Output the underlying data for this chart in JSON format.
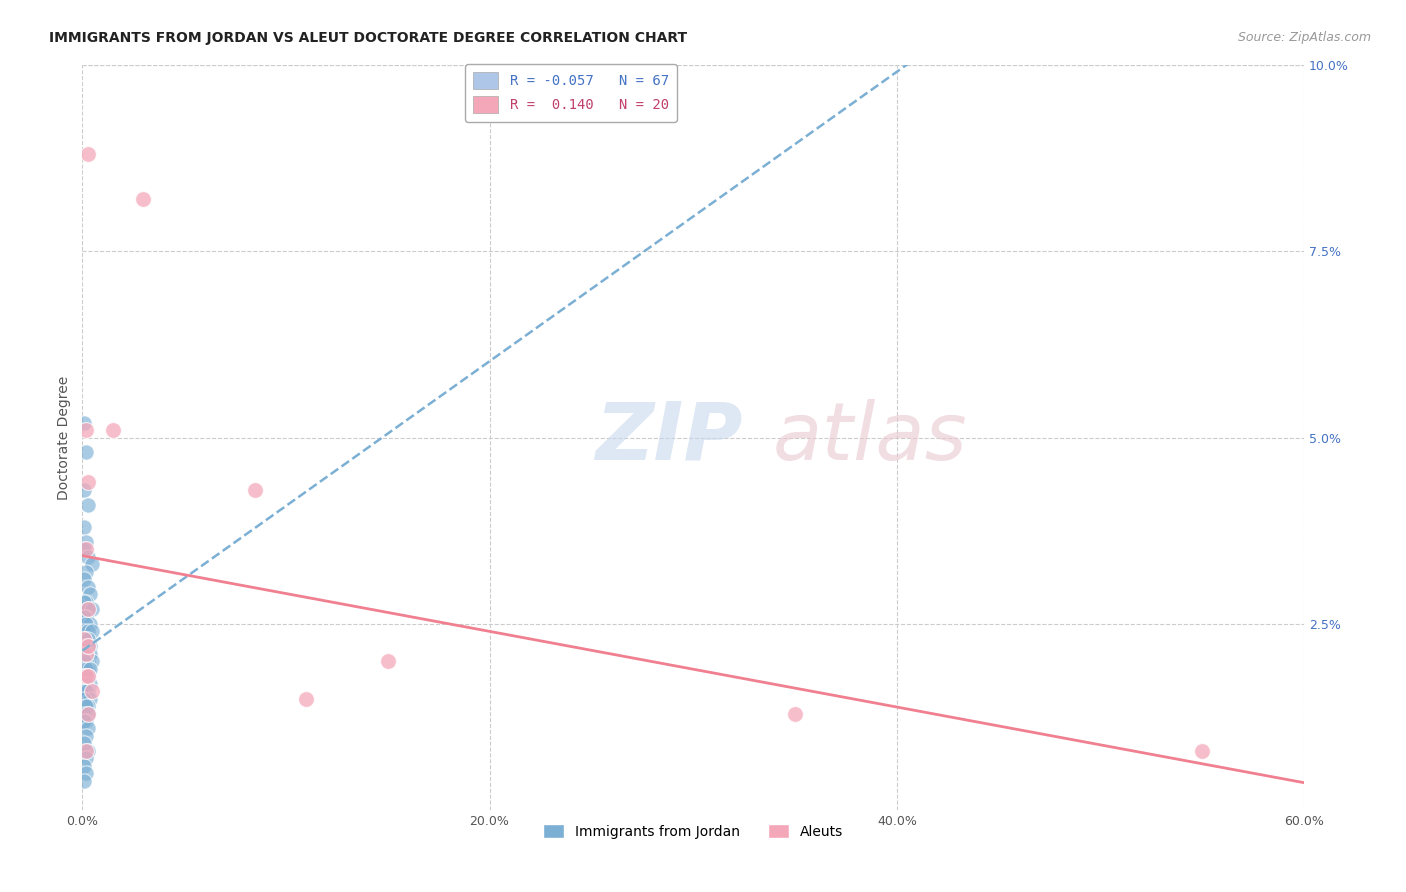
{
  "title": "IMMIGRANTS FROM JORDAN VS ALEUT DOCTORATE DEGREE CORRELATION CHART",
  "source": "Source: ZipAtlas.com",
  "ylabel": "Doctorate Degree",
  "xlabel": "",
  "xlim": [
    0.0,
    0.6
  ],
  "ylim": [
    0.0,
    0.1
  ],
  "xtick_labels": [
    "0.0%",
    "20.0%",
    "40.0%",
    "60.0%"
  ],
  "xtick_values": [
    0.0,
    0.2,
    0.4,
    0.6
  ],
  "ytick_labels": [
    "2.5%",
    "5.0%",
    "7.5%",
    "10.0%"
  ],
  "ytick_values": [
    0.025,
    0.05,
    0.075,
    0.1
  ],
  "jordan_color": "#7bafd4",
  "aleut_color": "#f08090",
  "jordan_scatter_color": "#7bafd4",
  "aleut_scatter_color": "#f4a7b9",
  "jordan_R": -0.057,
  "jordan_N": 67,
  "aleut_R": 0.14,
  "aleut_N": 20,
  "jordan_points": [
    [
      0.001,
      0.052
    ],
    [
      0.002,
      0.048
    ],
    [
      0.001,
      0.043
    ],
    [
      0.003,
      0.041
    ],
    [
      0.001,
      0.038
    ],
    [
      0.002,
      0.036
    ],
    [
      0.001,
      0.035
    ],
    [
      0.003,
      0.034
    ],
    [
      0.005,
      0.033
    ],
    [
      0.002,
      0.032
    ],
    [
      0.001,
      0.031
    ],
    [
      0.003,
      0.03
    ],
    [
      0.004,
      0.029
    ],
    [
      0.002,
      0.028
    ],
    [
      0.001,
      0.028
    ],
    [
      0.003,
      0.027
    ],
    [
      0.005,
      0.027
    ],
    [
      0.002,
      0.026
    ],
    [
      0.001,
      0.026
    ],
    [
      0.004,
      0.025
    ],
    [
      0.002,
      0.025
    ],
    [
      0.001,
      0.024
    ],
    [
      0.003,
      0.024
    ],
    [
      0.005,
      0.024
    ],
    [
      0.002,
      0.023
    ],
    [
      0.001,
      0.023
    ],
    [
      0.003,
      0.023
    ],
    [
      0.004,
      0.022
    ],
    [
      0.001,
      0.022
    ],
    [
      0.002,
      0.022
    ],
    [
      0.003,
      0.022
    ],
    [
      0.001,
      0.021
    ],
    [
      0.002,
      0.021
    ],
    [
      0.004,
      0.021
    ],
    [
      0.001,
      0.021
    ],
    [
      0.003,
      0.02
    ],
    [
      0.005,
      0.02
    ],
    [
      0.002,
      0.02
    ],
    [
      0.001,
      0.02
    ],
    [
      0.003,
      0.019
    ],
    [
      0.002,
      0.019
    ],
    [
      0.004,
      0.019
    ],
    [
      0.001,
      0.018
    ],
    [
      0.003,
      0.018
    ],
    [
      0.002,
      0.018
    ],
    [
      0.001,
      0.017
    ],
    [
      0.004,
      0.017
    ],
    [
      0.002,
      0.017
    ],
    [
      0.001,
      0.016
    ],
    [
      0.003,
      0.016
    ],
    [
      0.002,
      0.016
    ],
    [
      0.004,
      0.015
    ],
    [
      0.001,
      0.015
    ],
    [
      0.003,
      0.014
    ],
    [
      0.002,
      0.014
    ],
    [
      0.001,
      0.013
    ],
    [
      0.003,
      0.013
    ],
    [
      0.002,
      0.012
    ],
    [
      0.001,
      0.012
    ],
    [
      0.003,
      0.011
    ],
    [
      0.002,
      0.01
    ],
    [
      0.001,
      0.009
    ],
    [
      0.003,
      0.008
    ],
    [
      0.002,
      0.007
    ],
    [
      0.001,
      0.006
    ],
    [
      0.002,
      0.005
    ],
    [
      0.001,
      0.004
    ]
  ],
  "aleut_points": [
    [
      0.003,
      0.088
    ],
    [
      0.03,
      0.082
    ],
    [
      0.002,
      0.051
    ],
    [
      0.015,
      0.051
    ],
    [
      0.003,
      0.044
    ],
    [
      0.085,
      0.043
    ],
    [
      0.002,
      0.035
    ],
    [
      0.003,
      0.027
    ],
    [
      0.001,
      0.023
    ],
    [
      0.002,
      0.021
    ],
    [
      0.003,
      0.022
    ],
    [
      0.15,
      0.02
    ],
    [
      0.002,
      0.018
    ],
    [
      0.003,
      0.018
    ],
    [
      0.005,
      0.016
    ],
    [
      0.11,
      0.015
    ],
    [
      0.003,
      0.013
    ],
    [
      0.35,
      0.013
    ],
    [
      0.002,
      0.008
    ],
    [
      0.55,
      0.008
    ]
  ],
  "title_fontsize": 10,
  "source_fontsize": 9,
  "axis_fontsize": 10,
  "tick_fontsize": 9
}
